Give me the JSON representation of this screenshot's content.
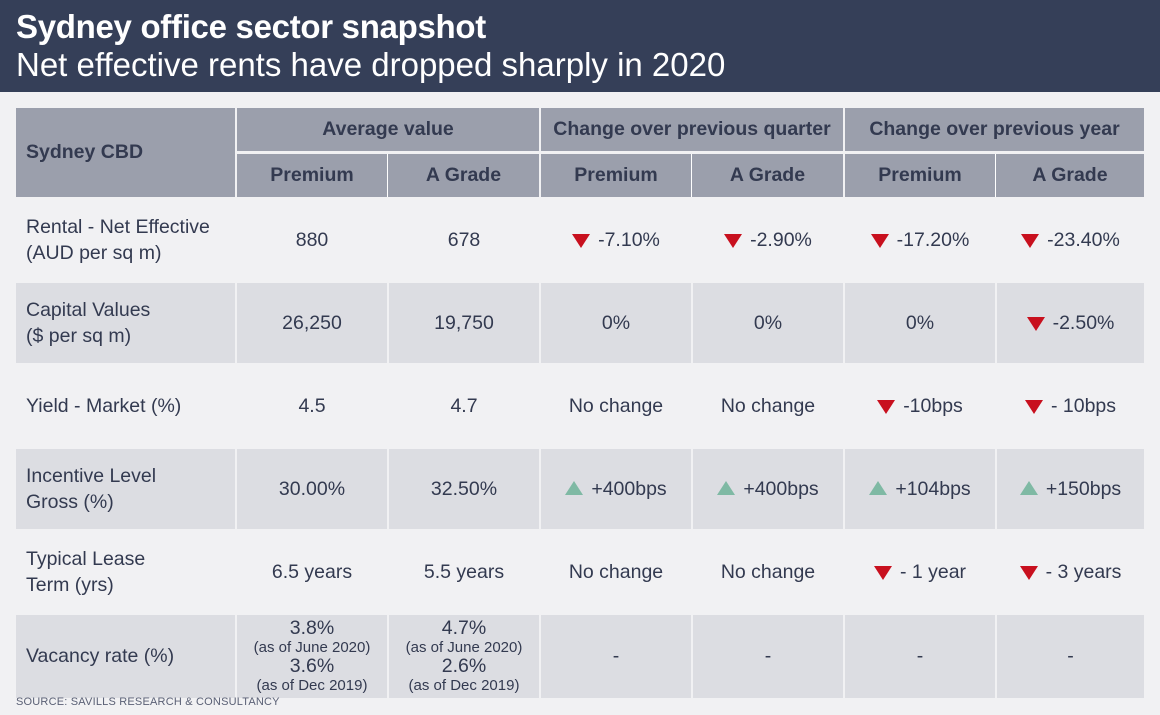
{
  "header": {
    "title": "Sydney office sector snapshot",
    "subtitle": "Net effective rents have dropped sharply in 2020"
  },
  "table": {
    "corner_label": "Sydney CBD",
    "groups": [
      "Average value",
      "Change over previous quarter",
      "Change over previous year"
    ],
    "subheaders": [
      "Premium",
      "A Grade",
      "Premium",
      "A Grade",
      "Premium",
      "A Grade"
    ],
    "rows": [
      {
        "label_line1": "Rental - Net Effective",
        "label_line2": "(AUD per sq m)",
        "cells": [
          {
            "text": "880",
            "arrow": "none"
          },
          {
            "text": "678",
            "arrow": "none"
          },
          {
            "text": "-7.10%",
            "arrow": "down"
          },
          {
            "text": "-2.90%",
            "arrow": "down"
          },
          {
            "text": "-17.20%",
            "arrow": "down"
          },
          {
            "text": "-23.40%",
            "arrow": "down"
          }
        ]
      },
      {
        "label_line1": "Capital Values",
        "label_line2": "($ per sq m)",
        "cells": [
          {
            "text": "26,250",
            "arrow": "none"
          },
          {
            "text": "19,750",
            "arrow": "none"
          },
          {
            "text": "0%",
            "arrow": "none"
          },
          {
            "text": "0%",
            "arrow": "none"
          },
          {
            "text": "0%",
            "arrow": "none"
          },
          {
            "text": "-2.50%",
            "arrow": "down"
          }
        ]
      },
      {
        "label_line1": "Yield - Market (%)",
        "label_line2": "",
        "cells": [
          {
            "text": "4.5",
            "arrow": "none"
          },
          {
            "text": "4.7",
            "arrow": "none"
          },
          {
            "text": "No change",
            "arrow": "none"
          },
          {
            "text": "No change",
            "arrow": "none"
          },
          {
            "text": "-10bps",
            "arrow": "down"
          },
          {
            "text": "- 10bps",
            "arrow": "down"
          }
        ]
      },
      {
        "label_line1": "Incentive Level",
        "label_line2": "Gross (%)",
        "cells": [
          {
            "text": "30.00%",
            "arrow": "none"
          },
          {
            "text": "32.50%",
            "arrow": "none"
          },
          {
            "text": "+400bps",
            "arrow": "up"
          },
          {
            "text": "+400bps",
            "arrow": "up"
          },
          {
            "text": "+104bps",
            "arrow": "up"
          },
          {
            "text": "+150bps",
            "arrow": "up"
          }
        ]
      },
      {
        "label_line1": "Typical Lease",
        "label_line2": "Term (yrs)",
        "cells": [
          {
            "text": "6.5 years",
            "arrow": "none"
          },
          {
            "text": "5.5 years",
            "arrow": "none"
          },
          {
            "text": "No change",
            "arrow": "none"
          },
          {
            "text": "No change",
            "arrow": "none"
          },
          {
            "text": "- 1 year",
            "arrow": "down"
          },
          {
            "text": "- 3 years",
            "arrow": "down"
          }
        ]
      }
    ],
    "vacancy": {
      "label": "Vacancy rate (%)",
      "premium": {
        "value1": "3.8%",
        "note1": "(as of June 2020)",
        "value2": "3.6%",
        "note2": "(as of Dec 2019)"
      },
      "agrade": {
        "value1": "4.7%",
        "note1": "(as of June 2020)",
        "value2": "2.6%",
        "note2": "(as of Dec 2019)"
      },
      "changes": [
        "-",
        "-",
        "-",
        "-"
      ]
    }
  },
  "source": "SOURCE: SAVILLS RESEARCH & CONSULTANCY",
  "colors": {
    "header_bg": "#353f58",
    "table_header_bg": "#9b9fac",
    "row_alt_bg": "#dcdde2",
    "arrow_down": "#c8101e",
    "arrow_up": "#7fb9a4"
  }
}
